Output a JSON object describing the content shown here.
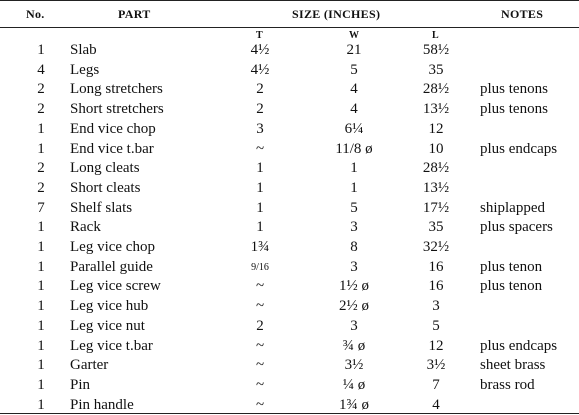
{
  "headers": {
    "no": "No.",
    "part": "PART",
    "size": "SIZE (INCHES)",
    "notes": "NOTES"
  },
  "subheaders": {
    "t": "T",
    "w": "W",
    "l": "L"
  },
  "rows": [
    {
      "no": "1",
      "part": "Slab",
      "t": "4½",
      "w": "21",
      "l": "58½",
      "notes": ""
    },
    {
      "no": "4",
      "part": "Legs",
      "t": "4½",
      "w": "5",
      "l": "35",
      "notes": ""
    },
    {
      "no": "2",
      "part": "Long stretchers",
      "t": "2",
      "w": "4",
      "l": "28½",
      "notes": "plus tenons"
    },
    {
      "no": "2",
      "part": "Short stretchers",
      "t": "2",
      "w": "4",
      "l": "13½",
      "notes": "plus tenons"
    },
    {
      "no": "1",
      "part": "End vice chop",
      "t": "3",
      "w": "6¼",
      "l": "12",
      "notes": ""
    },
    {
      "no": "1",
      "part": "End vice t.bar",
      "t": "~",
      "w": "11/8 ø",
      "l": "10",
      "notes": "plus endcaps"
    },
    {
      "no": "2",
      "part": "Long cleats",
      "t": "1",
      "w": "1",
      "l": "28½",
      "notes": ""
    },
    {
      "no": "2",
      "part": "Short cleats",
      "t": "1",
      "w": "1",
      "l": "13½",
      "notes": ""
    },
    {
      "no": "7",
      "part": "Shelf slats",
      "t": "1",
      "w": "5",
      "l": "17½",
      "notes": "shiplapped"
    },
    {
      "no": "1",
      "part": "Rack",
      "t": "1",
      "w": "3",
      "l": "35",
      "notes": "plus spacers"
    },
    {
      "no": "1",
      "part": "Leg vice chop",
      "t": "1¾",
      "w": "8",
      "l": "32½",
      "notes": ""
    },
    {
      "no": "1",
      "part": "Parallel guide",
      "t": "9/16",
      "w": "3",
      "l": "16",
      "notes": "plus tenon"
    },
    {
      "no": "1",
      "part": "Leg vice screw",
      "t": "~",
      "w": "1½ ø",
      "l": "16",
      "notes": "plus tenon"
    },
    {
      "no": "1",
      "part": "Leg vice hub",
      "t": "~",
      "w": "2½ ø",
      "l": "3",
      "notes": ""
    },
    {
      "no": "1",
      "part": "Leg vice nut",
      "t": "2",
      "w": "3",
      "l": "5",
      "notes": ""
    },
    {
      "no": "1",
      "part": "Leg vice t.bar",
      "t": "~",
      "w": "¾ ø",
      "l": "12",
      "notes": "plus endcaps"
    },
    {
      "no": "1",
      "part": "Garter",
      "t": "~",
      "w": "3½",
      "l": "3½",
      "notes": "sheet brass"
    },
    {
      "no": "1",
      "part": "Pin",
      "t": "~",
      "w": "¼ ø",
      "l": "7",
      "notes": "brass rod"
    },
    {
      "no": "1",
      "part": "Pin handle",
      "t": "~",
      "w": "1¾ ø",
      "l": "4",
      "notes": ""
    }
  ]
}
